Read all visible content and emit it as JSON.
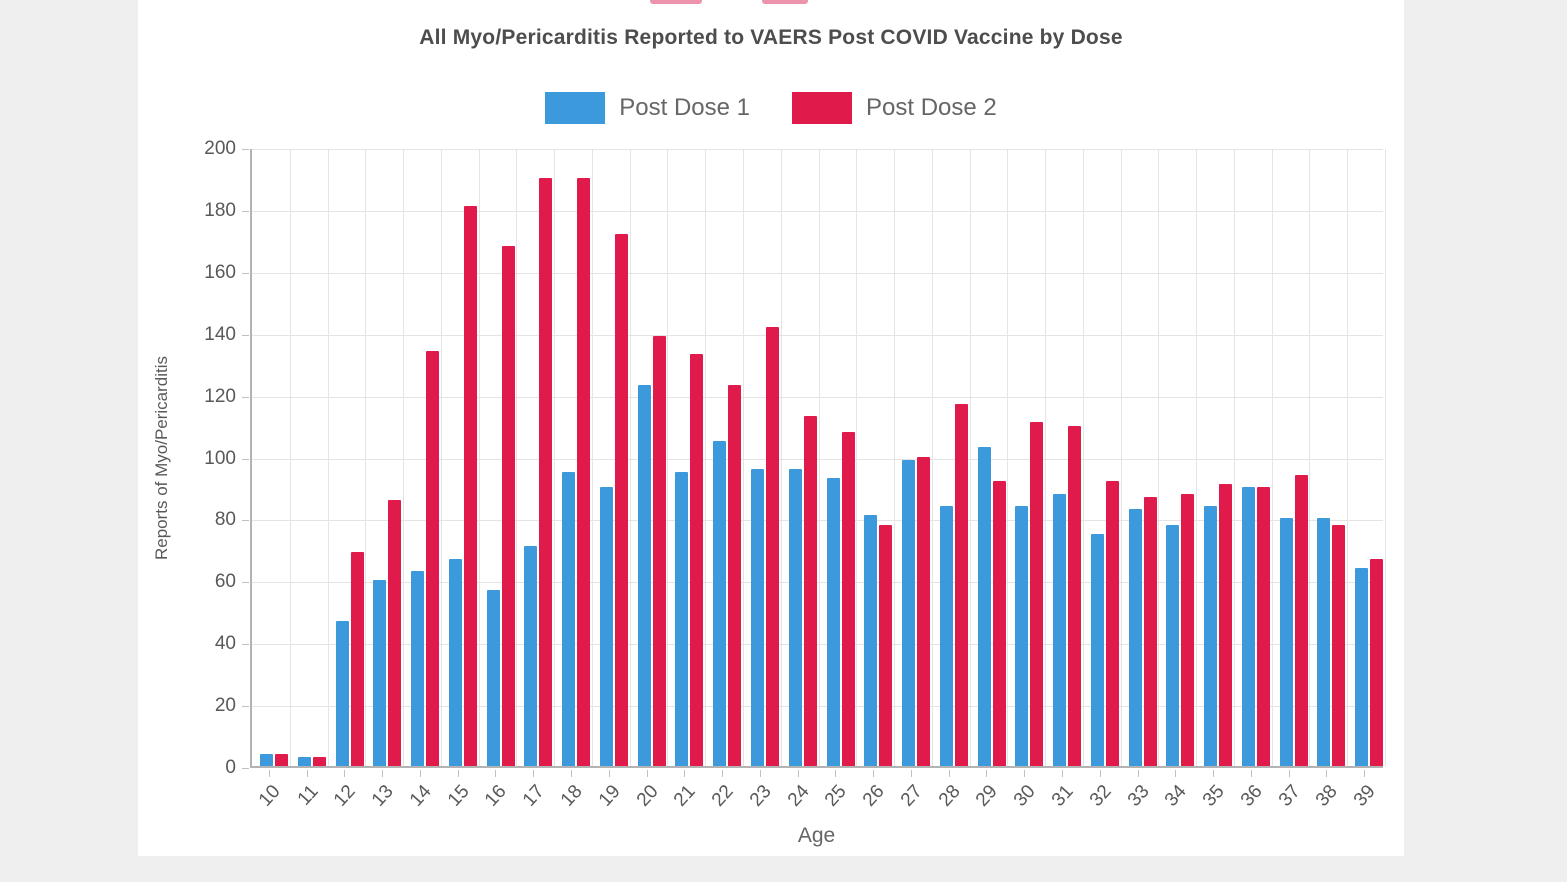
{
  "title": "All Myo/Pericarditis Reported to VAERS Post COVID Vaccine by Dose",
  "colors": {
    "dose1": "#3b99dc",
    "dose2": "#e01b4c",
    "page_background": "#efefef",
    "card_background": "#ffffff",
    "grid": "#e4e4e4",
    "axis": "#b3b3b3",
    "text": "#595959"
  },
  "chart_data": {
    "type": "bar",
    "title": "All Myo/Pericarditis Reported to VAERS Post COVID Vaccine by Dose",
    "xlabel": "Age",
    "ylabel": "Reports of Myo/Pericarditis",
    "ylim": [
      0,
      200
    ],
    "ytick_step": 20,
    "grid": true,
    "legend_position": "top",
    "categories": [
      "10",
      "11",
      "12",
      "13",
      "14",
      "15",
      "16",
      "17",
      "18",
      "19",
      "20",
      "21",
      "22",
      "23",
      "24",
      "25",
      "26",
      "27",
      "28",
      "29",
      "30",
      "31",
      "32",
      "33",
      "34",
      "35",
      "36",
      "37",
      "38",
      "39"
    ],
    "series": [
      {
        "name": "Post Dose 1",
        "color": "#3b99dc",
        "values": [
          4,
          3,
          47,
          60,
          63,
          67,
          57,
          71,
          95,
          90,
          123,
          95,
          105,
          96,
          96,
          93,
          81,
          99,
          84,
          103,
          84,
          88,
          75,
          83,
          78,
          84,
          90,
          80,
          80,
          64
        ]
      },
      {
        "name": "Post Dose 2",
        "color": "#e01b4c",
        "values": [
          4,
          3,
          69,
          86,
          134,
          181,
          168,
          190,
          190,
          172,
          139,
          133,
          123,
          142,
          113,
          108,
          78,
          100,
          117,
          92,
          111,
          110,
          92,
          87,
          88,
          91,
          90,
          94,
          78,
          67
        ]
      }
    ]
  }
}
